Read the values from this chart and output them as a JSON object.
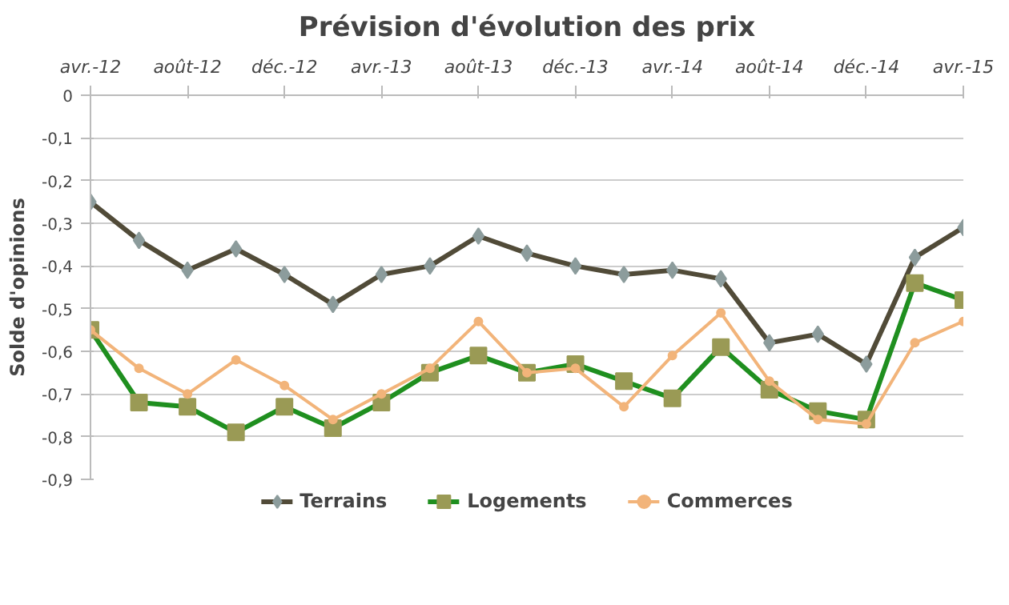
{
  "chart_data": {
    "type": "line",
    "title": "Prévision d'évolution des prix",
    "ylabel": "Solde d'opinions",
    "x": [
      "2012-04",
      "2012-06",
      "2012-08",
      "2012-10",
      "2012-12",
      "2013-02",
      "2013-04",
      "2013-06",
      "2013-08",
      "2013-10",
      "2013-12",
      "2014-02",
      "2014-04",
      "2014-06",
      "2014-08",
      "2014-10",
      "2014-12",
      "2015-02",
      "2015-04"
    ],
    "series": [
      {
        "name": "Terrains",
        "color": "#514b38",
        "marker": "diamond",
        "values": [
          -0.25,
          -0.34,
          -0.41,
          -0.36,
          -0.42,
          -0.49,
          -0.42,
          -0.4,
          -0.33,
          -0.37,
          -0.4,
          -0.42,
          -0.41,
          -0.43,
          -0.58,
          -0.56,
          -0.63,
          -0.38,
          -0.31
        ]
      },
      {
        "name": "Logements",
        "color": "#1f8f1f",
        "marker": "square",
        "values": [
          -0.55,
          -0.72,
          -0.73,
          -0.79,
          -0.73,
          -0.78,
          -0.72,
          -0.65,
          -0.61,
          -0.65,
          -0.63,
          -0.67,
          -0.71,
          -0.59,
          -0.69,
          -0.74,
          -0.76,
          -0.44,
          -0.48
        ]
      },
      {
        "name": "Commerces",
        "color": "#f2b47a",
        "marker": "circle",
        "values": [
          -0.55,
          -0.64,
          -0.7,
          -0.62,
          -0.68,
          -0.76,
          -0.7,
          -0.64,
          -0.53,
          -0.65,
          -0.64,
          -0.73,
          -0.61,
          -0.51,
          -0.67,
          -0.76,
          -0.77,
          -0.58,
          -0.53
        ]
      }
    ],
    "xlim": [
      "2012-04",
      "2015-04"
    ],
    "xticks": [
      {
        "value": "2012-04",
        "label": "avr.-12"
      },
      {
        "value": "2012-08",
        "label": "août-12"
      },
      {
        "value": "2012-12",
        "label": "déc.-12"
      },
      {
        "value": "2013-04",
        "label": "avr.-13"
      },
      {
        "value": "2013-08",
        "label": "août-13"
      },
      {
        "value": "2013-12",
        "label": "déc.-13"
      },
      {
        "value": "2014-04",
        "label": "avr.-14"
      },
      {
        "value": "2014-08",
        "label": "août-14"
      },
      {
        "value": "2014-12",
        "label": "déc.-14"
      },
      {
        "value": "2015-04",
        "label": "avr.-15"
      }
    ],
    "ylim": [
      -0.9,
      0
    ],
    "yticks": [
      {
        "value": 0,
        "label": "0"
      },
      {
        "value": -0.1,
        "label": "-0,1"
      },
      {
        "value": -0.2,
        "label": "-0,2"
      },
      {
        "value": -0.3,
        "label": "-0,3"
      },
      {
        "value": -0.4,
        "label": "-0,4"
      },
      {
        "value": -0.5,
        "label": "-0,5"
      },
      {
        "value": -0.6,
        "label": "-0,6"
      },
      {
        "value": -0.7,
        "label": "-0,7"
      },
      {
        "value": -0.8,
        "label": "-0,8"
      },
      {
        "value": -0.9,
        "label": "-0,9"
      }
    ],
    "grid": "y",
    "legend": "bottom",
    "line_style": "solid"
  }
}
